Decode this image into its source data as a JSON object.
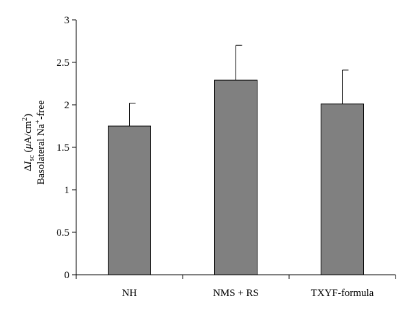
{
  "chart_data": {
    "type": "bar",
    "categories": [
      "NH",
      "NMS + RS",
      "TXYF-formula"
    ],
    "values": [
      1.75,
      2.29,
      2.01
    ],
    "error_upper": [
      0.27,
      0.41,
      0.4
    ],
    "ylabel_line1": {
      "delta": "Δ",
      "symbol": "I",
      "subscript": "sc",
      "unit_open": " (",
      "unit_mu": "μ",
      "unit_rest": "A/cm",
      "unit_sup": "2",
      "unit_close": ")"
    },
    "ylabel_line2": {
      "text": "Basolateral Na",
      "sup": "+",
      "rest": "-free"
    },
    "ylim": [
      0,
      3
    ],
    "yticks": [
      "0",
      "0.5",
      "1",
      "1.5",
      "2",
      "2.5",
      "3"
    ],
    "grid": false,
    "legend": "none",
    "colors": {
      "bar": "#808080",
      "bar_stroke": "#000000",
      "axis": "#000000"
    }
  }
}
